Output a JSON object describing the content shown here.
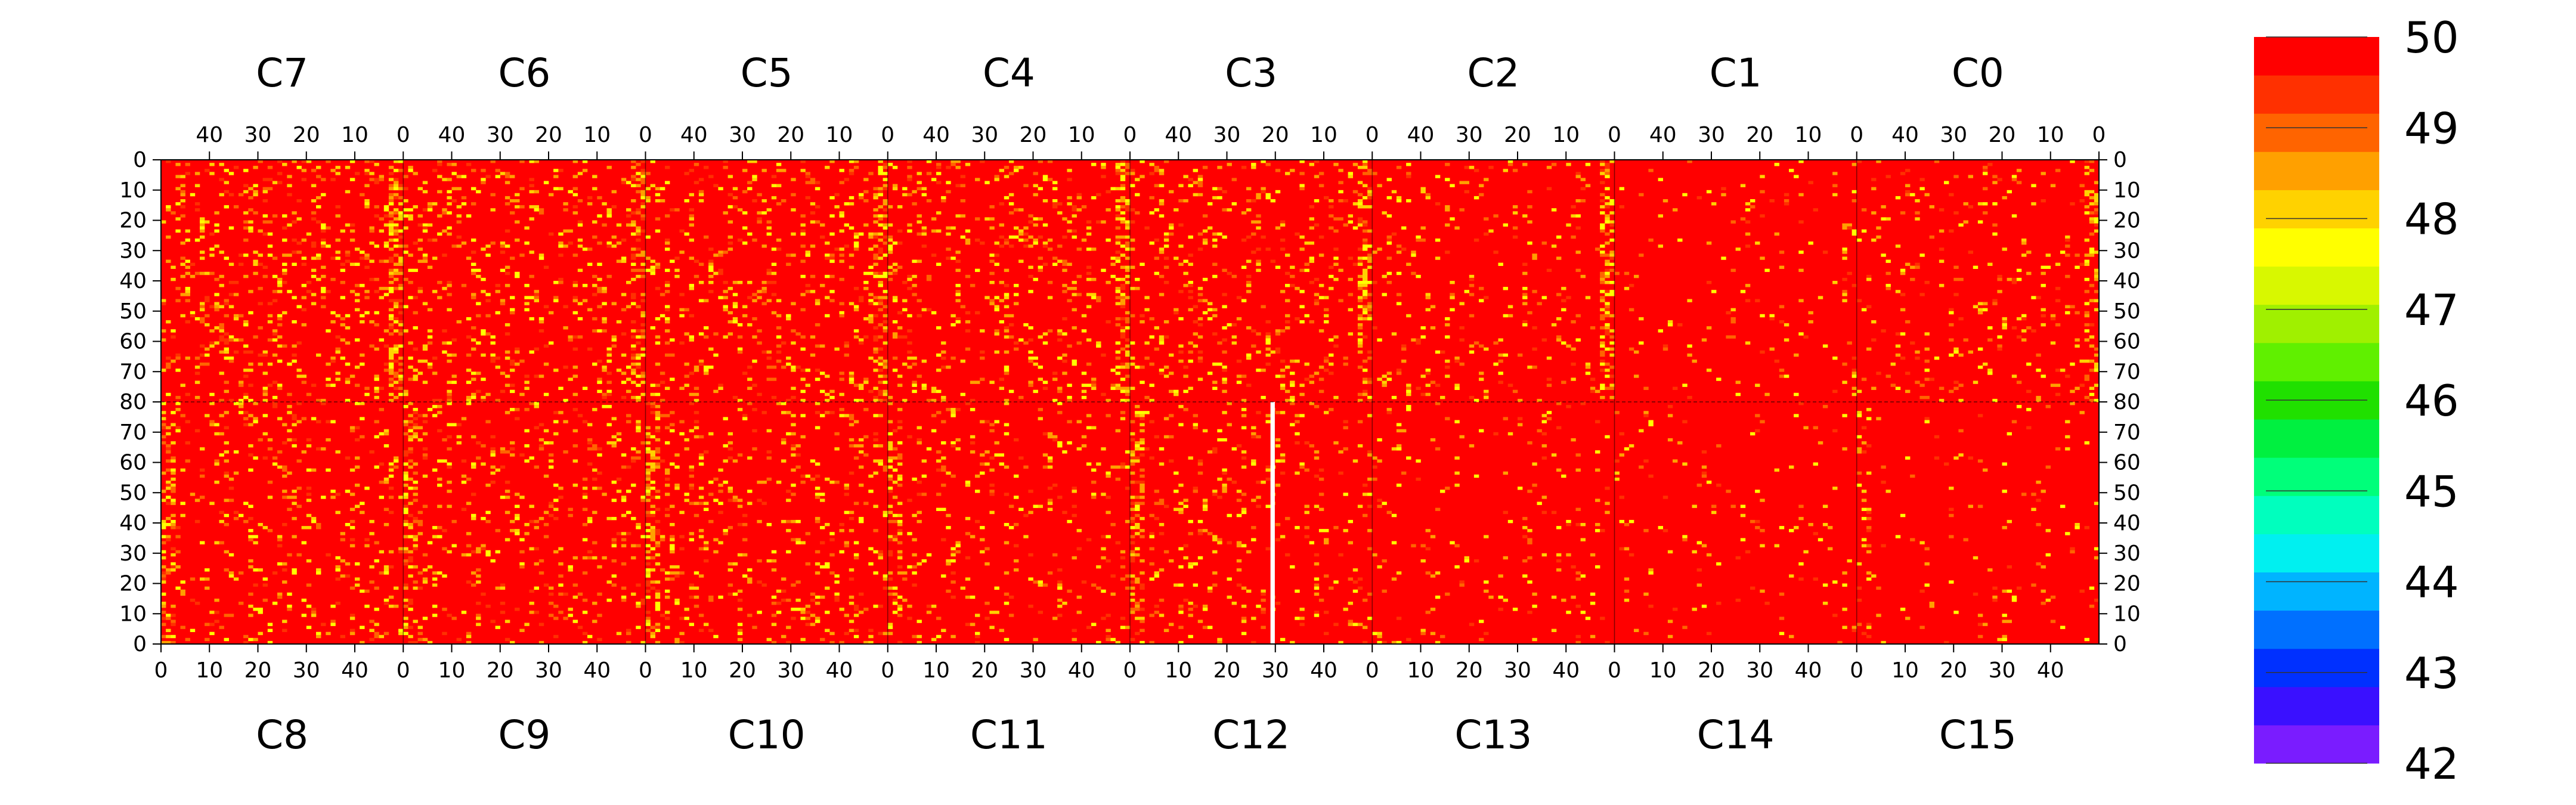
{
  "chart_data": {
    "type": "heatmap",
    "title": "",
    "xlabel": "",
    "ylabel": "",
    "zlim": [
      42,
      50
    ],
    "colorbar_ticks": [
      42,
      43,
      44,
      45,
      46,
      47,
      48,
      49,
      50
    ],
    "colorbar_colors": [
      "#7a1cff",
      "#3a10ff",
      "#0030ff",
      "#0070ff",
      "#00b4ff",
      "#00f0f0",
      "#00ffbe",
      "#00ff7a",
      "#00f040",
      "#20e000",
      "#60f000",
      "#a0f000",
      "#d8f800",
      "#ffff00",
      "#ffd200",
      "#ffa000",
      "#ff6400",
      "#ff3000",
      "#ff0000"
    ],
    "background_color": "#ff0000",
    "panels_top": [
      {
        "name": "C7",
        "band_strength": 0.75,
        "noise_density": 0.26
      },
      {
        "name": "C6",
        "band_strength": 0.55,
        "noise_density": 0.24
      },
      {
        "name": "C5",
        "band_strength": 0.55,
        "noise_density": 0.24
      },
      {
        "name": "C4",
        "band_strength": 0.7,
        "noise_density": 0.24
      },
      {
        "name": "C3",
        "band_strength": 0.55,
        "noise_density": 0.22
      },
      {
        "name": "C2",
        "band_strength": 0.6,
        "noise_density": 0.14
      },
      {
        "name": "C1",
        "band_strength": 0.1,
        "noise_density": 0.06
      },
      {
        "name": "C0",
        "band_strength": 0.55,
        "noise_density": 0.12
      }
    ],
    "panels_bottom": [
      {
        "name": "C8",
        "band_strength": 0.5,
        "noise_density": 0.2
      },
      {
        "name": "C9",
        "band_strength": 0.45,
        "noise_density": 0.2
      },
      {
        "name": "C10",
        "band_strength": 0.6,
        "noise_density": 0.22
      },
      {
        "name": "C11",
        "band_strength": 0.6,
        "noise_density": 0.14
      },
      {
        "name": "C12",
        "band_strength": 0.6,
        "noise_density": 0.16
      },
      {
        "name": "C13",
        "band_strength": 0.1,
        "noise_density": 0.08
      },
      {
        "name": "C14",
        "band_strength": 0.1,
        "noise_density": 0.05
      },
      {
        "name": "C15",
        "band_strength": 0.2,
        "noise_density": 0.07
      }
    ],
    "top_axis": {
      "ticks": [
        40,
        30,
        20,
        10,
        0
      ],
      "range": [
        50,
        0
      ]
    },
    "bottom_axis": {
      "ticks": [
        0,
        10,
        20,
        30,
        40
      ],
      "range": [
        0,
        50
      ]
    },
    "left_axis_ticks": [
      0,
      10,
      20,
      30,
      40,
      50,
      60,
      70,
      80,
      70,
      60,
      50,
      40,
      30,
      20,
      10,
      0
    ],
    "right_axis_ticks": [
      0,
      10,
      20,
      30,
      40,
      50,
      60,
      70,
      80,
      70,
      60,
      50,
      40,
      30,
      20,
      10,
      0
    ],
    "row_range_per_half": [
      0,
      80
    ],
    "dead_channel": {
      "panel": "C12",
      "x": 29,
      "y_range": [
        0,
        80
      ],
      "color": "#ffffff"
    }
  }
}
